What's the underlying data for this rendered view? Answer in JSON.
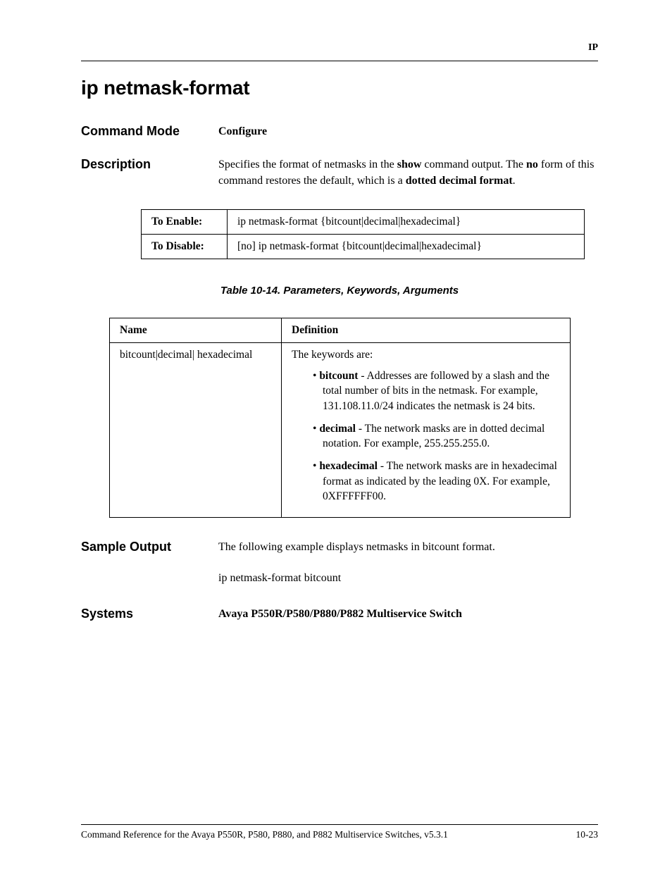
{
  "header": {
    "section": "IP"
  },
  "title": "ip netmask-format",
  "command_mode": {
    "label": "Command Mode",
    "value": "Configure"
  },
  "description": {
    "label": "Description",
    "text_pre": "Specifies the format of netmasks in the ",
    "bold1": "show",
    "text_mid1": " command output. The ",
    "bold2": "no",
    "text_mid2": " form of this command restores the default, which is a ",
    "bold3": "dotted decimal format",
    "text_end": "."
  },
  "syntax": {
    "enable_label": "To Enable:",
    "enable_text": "ip netmask-format {bitcount|decimal|hexadecimal}",
    "disable_label": "To Disable:",
    "disable_text": "[no] ip netmask-format {bitcount|decimal|hexadecimal}"
  },
  "params": {
    "caption": "Table 10-14.  Parameters, Keywords, Arguments",
    "col_name": "Name",
    "col_def": "Definition",
    "row0_name": "bitcount|decimal| hexadecimal",
    "row0_intro": "The keywords are:",
    "row0_b0_k": "bitcount",
    "row0_b0_t": " - Addresses are followed by a slash and the total number of bits in the netmask. For example, 131.108.11.0/24 indicates the netmask is 24 bits.",
    "row0_b1_k": "decimal",
    "row0_b1_t": " - The network masks are in dotted decimal notation. For example, 255.255.255.0.",
    "row0_b2_k": "hexadecimal",
    "row0_b2_t": " - The network masks are in hexadecimal format as indicated by the leading 0X. For example, 0XFFFFFF00."
  },
  "sample": {
    "label": "Sample Output",
    "text": "The following example displays netmasks in bitcount format.",
    "example": "ip netmask-format bitcount"
  },
  "systems": {
    "label": "Systems",
    "value": "Avaya P550R/P580/P880/P882 Multiservice Switch"
  },
  "footer": {
    "left": "Command Reference for the Avaya P550R, P580, P880, and P882 Multiservice Switches, v5.3.1",
    "right": "10-23"
  }
}
